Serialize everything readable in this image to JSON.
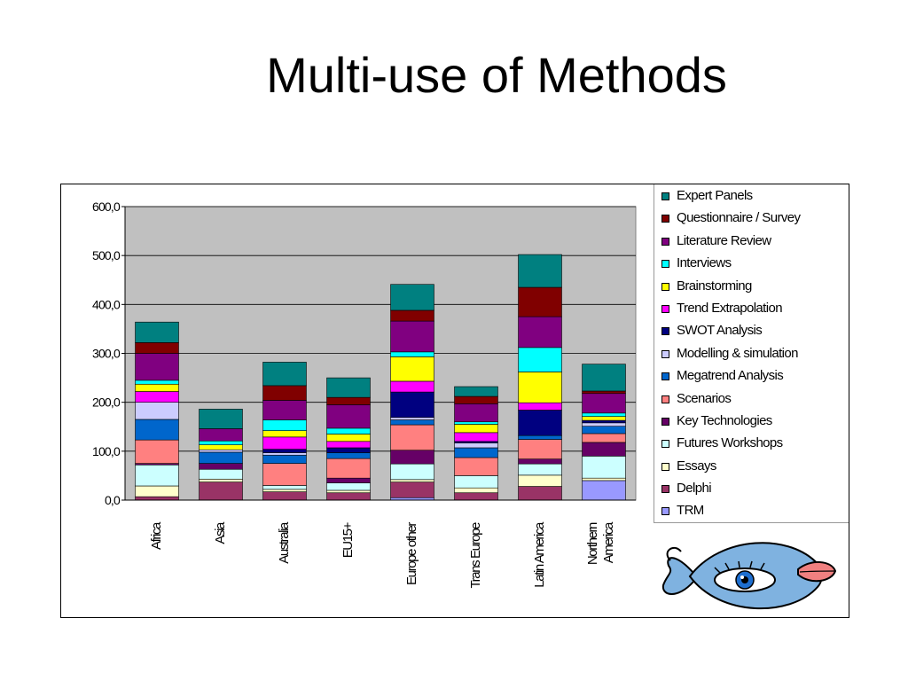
{
  "slide": {
    "title": "Multi-use of Methods"
  },
  "chart_data": {
    "type": "stacked_bar",
    "categories": [
      "Africa",
      "Asia",
      "Australia",
      "EU15+",
      "Europe other",
      "Trans Europe",
      "Latin America",
      "Northern America"
    ],
    "y_ticks": [
      "0,0",
      "100,0",
      "200,0",
      "300,0",
      "400,0",
      "500,0",
      "600,0"
    ],
    "ylim": [
      0,
      600
    ],
    "grid": true,
    "plot_background": "#c0c0c0",
    "legend_position": "right",
    "series": [
      {
        "name": "TRM",
        "color": "#9999ff",
        "values": [
          0,
          0,
          0,
          0,
          5,
          0,
          0,
          40
        ]
      },
      {
        "name": "Delphi",
        "color": "#993366",
        "values": [
          7,
          37,
          17,
          15,
          32,
          15,
          28,
          0
        ]
      },
      {
        "name": "Essays",
        "color": "#ffffcc",
        "values": [
          22,
          6,
          5,
          5,
          5,
          10,
          23,
          5
        ]
      },
      {
        "name": "Futures Workshops",
        "color": "#ccffff",
        "values": [
          43,
          20,
          8,
          15,
          32,
          25,
          23,
          45
        ]
      },
      {
        "name": "Key Technologies",
        "color": "#660066",
        "values": [
          3,
          12,
          0,
          10,
          28,
          0,
          10,
          28
        ]
      },
      {
        "name": "Scenarios",
        "color": "#ff8080",
        "values": [
          48,
          0,
          45,
          40,
          52,
          37,
          40,
          18
        ]
      },
      {
        "name": "Megatrend Analysis",
        "color": "#0066cc",
        "values": [
          42,
          23,
          17,
          12,
          10,
          20,
          8,
          15
        ]
      },
      {
        "name": "Modelling & simulation",
        "color": "#ccccff",
        "values": [
          35,
          5,
          5,
          0,
          5,
          10,
          0,
          7
        ]
      },
      {
        "name": "SWOT Analysis",
        "color": "#000080",
        "values": [
          0,
          0,
          7,
          10,
          52,
          3,
          52,
          5
        ]
      },
      {
        "name": "Trend Extrapolation",
        "color": "#ff00ff",
        "values": [
          22,
          0,
          25,
          13,
          22,
          18,
          15,
          0
        ]
      },
      {
        "name": "Brainstorming",
        "color": "#ffff00",
        "values": [
          15,
          10,
          13,
          15,
          50,
          17,
          63,
          8
        ]
      },
      {
        "name": "Interviews",
        "color": "#00ffff",
        "values": [
          8,
          8,
          22,
          12,
          10,
          5,
          50,
          7
        ]
      },
      {
        "name": "Literature Review",
        "color": "#800080",
        "values": [
          55,
          25,
          40,
          48,
          63,
          37,
          63,
          40
        ]
      },
      {
        "name": "Questionnaire / Survey",
        "color": "#800000",
        "values": [
          22,
          0,
          30,
          15,
          22,
          15,
          60,
          5
        ]
      },
      {
        "name": "Expert Panels",
        "color": "#008080",
        "values": [
          42,
          40,
          48,
          40,
          53,
          20,
          67,
          55
        ]
      }
    ]
  },
  "fish_icon": {
    "body_color": "#7fb2e0",
    "lips_color": "#f08080",
    "eye_color": "#1e6fd0"
  }
}
